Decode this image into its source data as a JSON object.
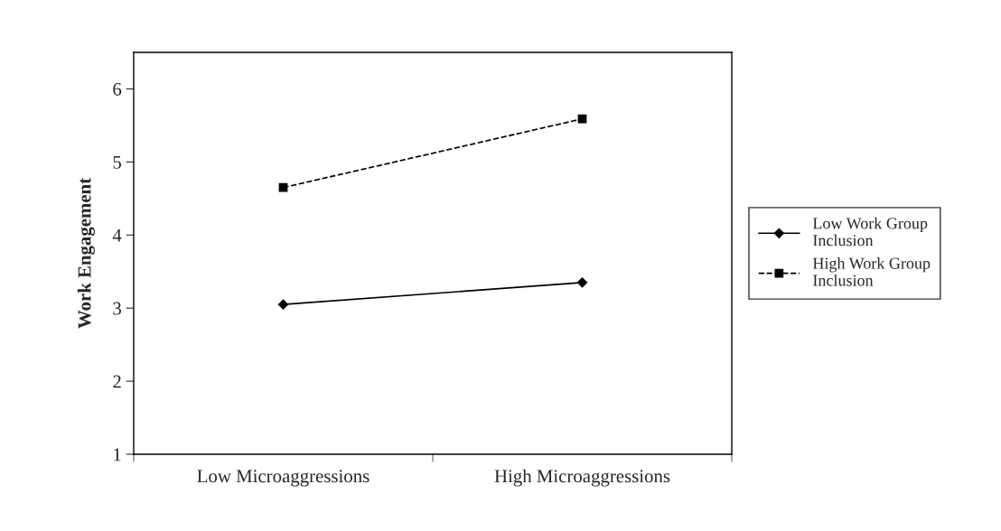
{
  "chart_data": {
    "type": "line",
    "ylabel": "Work Engagement",
    "categories": [
      "Low Microaggressions",
      "High Microaggressions"
    ],
    "series": [
      {
        "name": "Low Work Group\nInclusion",
        "color": "#000000",
        "values": [
          3.05,
          3.35
        ],
        "marker": "diamond",
        "line_style": "solid"
      },
      {
        "name": "High Work Group\nInclusion",
        "color": "#000000",
        "values": [
          4.65,
          5.59
        ],
        "marker": "square",
        "line_style": "dashed"
      }
    ],
    "ylim": [
      1,
      6.5
    ],
    "yticks": [
      1,
      2,
      3,
      4,
      5,
      6
    ],
    "grid": false,
    "legend": "right"
  }
}
